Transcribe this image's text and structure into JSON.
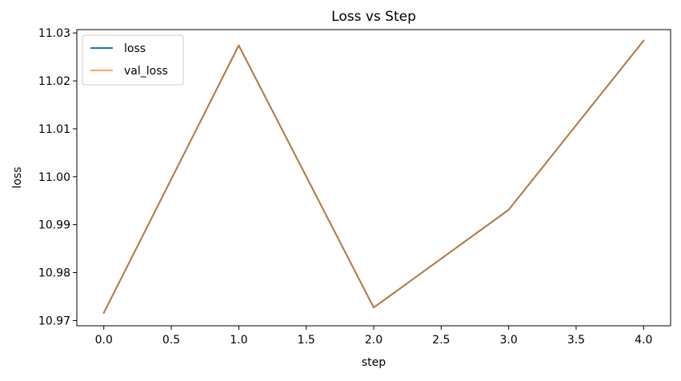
{
  "colors": {
    "loss": "#1f77b4",
    "val_loss": "#ff7f0e",
    "background": "#ffffff",
    "axis": "#000000"
  },
  "chart_data": {
    "type": "line",
    "title": "Loss vs Step",
    "xlabel": "step",
    "ylabel": "loss",
    "xlim": [
      -0.2,
      4.2
    ],
    "ylim": [
      10.9689,
      11.0307
    ],
    "xticks": [
      0.0,
      0.5,
      1.0,
      1.5,
      2.0,
      2.5,
      3.0,
      3.5,
      4.0
    ],
    "xtick_labels": [
      "0.0",
      "0.5",
      "1.0",
      "1.5",
      "2.0",
      "2.5",
      "3.0",
      "3.5",
      "4.0"
    ],
    "yticks": [
      10.97,
      10.98,
      10.99,
      11.0,
      11.01,
      11.02,
      11.03
    ],
    "ytick_labels": [
      "10.97",
      "10.98",
      "10.99",
      "11.00",
      "11.01",
      "11.02",
      "11.03"
    ],
    "grid": false,
    "legend_position": "top-left",
    "x": [
      0,
      1,
      2,
      3,
      4
    ],
    "series": [
      {
        "name": "loss",
        "values": [
          10.9716,
          11.0274,
          10.9727,
          10.9931,
          11.0284
        ],
        "color": "#1f77b4",
        "opacity": 1.0
      },
      {
        "name": "val_loss",
        "values": [
          10.9716,
          11.0274,
          10.9727,
          10.9931,
          11.0284
        ],
        "color": "#ff7f0e",
        "opacity": 0.7
      }
    ]
  }
}
